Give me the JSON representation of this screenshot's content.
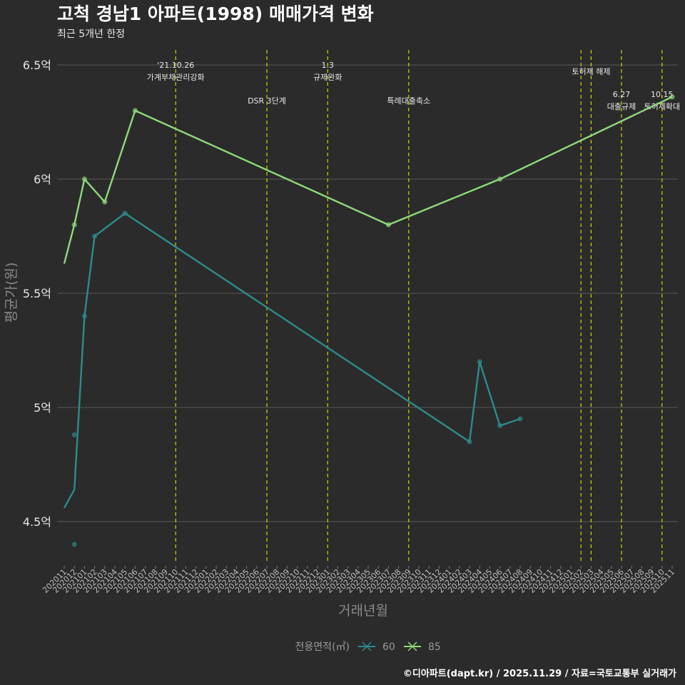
{
  "title": "고척 경남1 아파트(1998) 매매가격 변화",
  "subtitle": "최근 5개년 한정",
  "caption": "©디아파트(dapt.kr) / 2025.11.29 / 자료=국토교통부 실거래가",
  "chart_data": {
    "type": "line",
    "xlabel": "거래년월",
    "ylabel": "평균가(원)",
    "ylim": [
      4.3,
      6.55
    ],
    "yticks": [
      {
        "value": 4.5,
        "label": "4.5억"
      },
      {
        "value": 5.0,
        "label": "5억"
      },
      {
        "value": 5.5,
        "label": "5.5억"
      },
      {
        "value": 6.0,
        "label": "6억"
      },
      {
        "value": 6.5,
        "label": "6.5억"
      }
    ],
    "categories": [
      "202011",
      "202012",
      "202101",
      "202102",
      "202103",
      "202104",
      "202105",
      "202106",
      "202107",
      "202108",
      "202109",
      "202110",
      "202111",
      "202112",
      "202201",
      "202202",
      "202203",
      "202204",
      "202205",
      "202206",
      "202207",
      "202208",
      "202209",
      "202210",
      "202211",
      "202212",
      "202301",
      "202302",
      "202303",
      "202304",
      "202305",
      "202306",
      "202307",
      "202308",
      "202309",
      "202310",
      "202311",
      "202312",
      "202401",
      "202402",
      "202403",
      "202404",
      "202405",
      "202406",
      "202407",
      "202408",
      "202409",
      "202410",
      "202411",
      "202412",
      "202501",
      "202502",
      "202503",
      "202504",
      "202505",
      "202506",
      "202507",
      "202508",
      "202509",
      "202510",
      "202511"
    ],
    "series": [
      {
        "name": "60",
        "color": "#2e8b8b",
        "line": [
          [
            "202011",
            4.56
          ],
          [
            "202012",
            4.64
          ],
          [
            "202101",
            5.4
          ],
          [
            "202102",
            5.75
          ],
          [
            "202105",
            5.85
          ],
          [
            "202403",
            4.85
          ],
          [
            "202404",
            5.2
          ],
          [
            "202406",
            4.92
          ],
          [
            "202408",
            4.95
          ]
        ],
        "points": [
          [
            "202012",
            4.4
          ],
          [
            "202012",
            4.88
          ],
          [
            "202101",
            5.4
          ],
          [
            "202102",
            5.75
          ],
          [
            "202105",
            5.85
          ],
          [
            "202403",
            4.85
          ],
          [
            "202404",
            5.2
          ],
          [
            "202406",
            4.92
          ],
          [
            "202408",
            4.95
          ]
        ]
      },
      {
        "name": "85",
        "color": "#8fd97a",
        "line": [
          [
            "202011",
            5.63
          ],
          [
            "202012",
            5.8
          ],
          [
            "202101",
            6.0
          ],
          [
            "202103",
            5.9
          ],
          [
            "202106",
            6.3
          ],
          [
            "202307",
            5.8
          ],
          [
            "202406",
            6.0
          ],
          [
            "202511",
            6.36
          ]
        ],
        "points": [
          [
            "202012",
            5.8
          ],
          [
            "202101",
            6.0
          ],
          [
            "202103",
            5.9
          ],
          [
            "202106",
            6.3
          ],
          [
            "202307",
            5.8
          ],
          [
            "202406",
            6.0
          ],
          [
            "202511",
            6.36
          ]
        ]
      }
    ],
    "events": [
      {
        "pos": 11.0,
        "lines": [
          "'21.10.26",
          "가계부채관리강화"
        ],
        "row": 0
      },
      {
        "pos": 20.0,
        "lines": [
          "DSR 3단계"
        ],
        "row": 1
      },
      {
        "pos": 26.0,
        "lines": [
          "1.3",
          "규제완화"
        ],
        "row": 0
      },
      {
        "pos": 34.0,
        "lines": [
          "특례대출축소"
        ],
        "row": 1
      },
      {
        "pos": 51.0,
        "lines": [],
        "row": 0
      },
      {
        "pos": 52.0,
        "lines": [
          "토허제 해제"
        ],
        "row": 0
      },
      {
        "pos": 55.0,
        "lines": [
          "6.27",
          "대출규제"
        ],
        "row": 1
      },
      {
        "pos": 59.0,
        "lines": [
          "10.15",
          "토허제확대"
        ],
        "row": 1
      }
    ],
    "event_color": "#d4d400",
    "legend": {
      "title": "전용면적(㎡)",
      "position": "bottom"
    }
  }
}
